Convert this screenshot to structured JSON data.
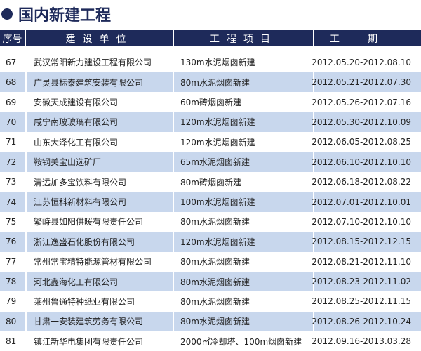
{
  "title": "国内新建工程",
  "colors": {
    "header_bg": "#1e2a5a",
    "alt_row": "#c8d7ed"
  },
  "columns": [
    "序号",
    "建设单位",
    "工程项目",
    "工期"
  ],
  "rows": [
    {
      "no": "67",
      "unit": "武汉常阳新力建设工程有限公司",
      "project": "130m水泥烟囱新建",
      "period": "2012.05.20-2012.08.10"
    },
    {
      "no": "68",
      "unit": "广灵县标泰建筑安装有限公司",
      "project": "80m水泥烟囱新建",
      "period": "2012.05.21-2012.07.30"
    },
    {
      "no": "69",
      "unit": "安徽天成建设有限公司",
      "project": "60m砖烟囱新建",
      "period": "2012.05.26-2012.07.16"
    },
    {
      "no": "70",
      "unit": "咸宁南玻玻璃有限公司",
      "project": "120m水泥烟囱新建",
      "period": "2012.05.30-2012.10.09"
    },
    {
      "no": "71",
      "unit": "山东大泽化工有限公司",
      "project": "120m水泥烟囱新建",
      "period": "2012.06.05-2012.08.25"
    },
    {
      "no": "72",
      "unit": "鞍钢关宝山选矿厂",
      "project": "65m水泥烟囱新建",
      "period": "2012.06.10-2012.10.10"
    },
    {
      "no": "73",
      "unit": "清远加多宝饮料有限公司",
      "project": "80m砖烟囱新建",
      "period": "2012.06.18-2012.08.22"
    },
    {
      "no": "74",
      "unit": "江苏恒科新材料有限公司",
      "project": "100m水泥烟囱新建",
      "period": "2012.07.01-2012.10.01"
    },
    {
      "no": "75",
      "unit": "繁峙县如阳供暖有限责任公司",
      "project": "80m水泥烟囱新建",
      "period": "2012.07.10-2012.10.10"
    },
    {
      "no": "76",
      "unit": "浙江逸盛石化股份有限公司",
      "project": "120m水泥烟囱新建",
      "period": "2012.08.15-2012.12.15"
    },
    {
      "no": "77",
      "unit": "常州常宝精特能源管材有限公司",
      "project": "80m水泥烟囱新建",
      "period": "2012.08.21-2012.11.10"
    },
    {
      "no": "78",
      "unit": "河北鑫海化工有限公司",
      "project": "80m水泥烟囱新建",
      "period": "2012.08.23-2012.11.02"
    },
    {
      "no": "79",
      "unit": "莱州鲁通特种纸业有限公司",
      "project": "80m水泥烟囱新建",
      "period": "2012.08.25-2012.11.15"
    },
    {
      "no": "80",
      "unit": "甘肃一安装建筑劳务有限公司",
      "project": "80m水泥烟囱新建",
      "period": "2012.08.26-2012.10.24"
    },
    {
      "no": "81",
      "unit": "镇江新华电集团有限责任公司",
      "project": "2000㎡冷却塔、100m烟囱新建",
      "period": "2012.09.16-2013.03.28"
    }
  ]
}
